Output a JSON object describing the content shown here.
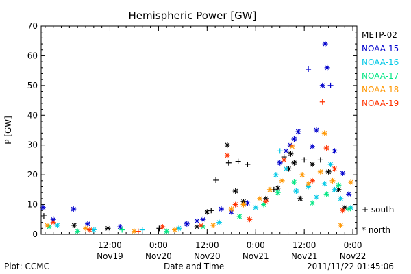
{
  "chart_data": {
    "type": "scatter",
    "title": "Hemispheric Power [GW]",
    "xlabel": "Date and Time",
    "ylabel": "P [GW]",
    "ylim": [
      0,
      70
    ],
    "y_ticks": [
      0,
      10,
      20,
      30,
      40,
      50,
      60,
      70
    ],
    "xlim": [
      "2011-11-18T19:00",
      "2011-11-22T01:00"
    ],
    "x_ticks": [
      {
        "time": "2011-11-19T12:00",
        "line1": "12:00",
        "line2": "Nov19"
      },
      {
        "time": "2011-11-20T00:00",
        "line1": "0:00",
        "line2": "Nov20"
      },
      {
        "time": "2011-11-20T12:00",
        "line1": "12:00",
        "line2": "Nov20"
      },
      {
        "time": "2011-11-21T00:00",
        "line1": "0:00",
        "line2": "Nov21"
      },
      {
        "time": "2011-11-21T12:00",
        "line1": "12:00",
        "line2": "Nov21"
      },
      {
        "time": "2011-11-22T00:00",
        "line1": "0:00",
        "line2": "Nov22"
      }
    ],
    "grid": false,
    "legend_position": "right",
    "markers": {
      "south": "+",
      "north": "*"
    },
    "marker_legend": [
      {
        "symbol": "+",
        "label": "south"
      },
      {
        "symbol": "*",
        "label": "north"
      }
    ],
    "series": [
      {
        "name": "METP-02",
        "color": "#000000",
        "points": [
          [
            "2011-11-18T19:40",
            6.2,
            "south"
          ],
          [
            "2011-11-19T03:10",
            3.0,
            "north"
          ],
          [
            "2011-11-19T11:30",
            2.0,
            "north"
          ],
          [
            "2011-11-20T00:10",
            2.0,
            "south"
          ],
          [
            "2011-11-20T09:30",
            2.5,
            "north"
          ],
          [
            "2011-11-20T12:00",
            7.5,
            "north"
          ],
          [
            "2011-11-20T13:00",
            8.0,
            "south"
          ],
          [
            "2011-11-20T14:10",
            18.2,
            "south"
          ],
          [
            "2011-11-20T17:00",
            30.0,
            "north"
          ],
          [
            "2011-11-20T17:20",
            24.0,
            "south"
          ],
          [
            "2011-11-20T19:00",
            14.5,
            "north"
          ],
          [
            "2011-11-20T19:40",
            24.5,
            "south"
          ],
          [
            "2011-11-20T21:00",
            11.0,
            "north"
          ],
          [
            "2011-11-20T22:00",
            23.5,
            "south"
          ],
          [
            "2011-11-21T02:30",
            12.0,
            "north"
          ],
          [
            "2011-11-21T04:30",
            15.0,
            "south"
          ],
          [
            "2011-11-21T05:30",
            15.5,
            "north"
          ],
          [
            "2011-11-21T07:00",
            26.0,
            "south"
          ],
          [
            "2011-11-21T08:10",
            22.0,
            "north"
          ],
          [
            "2011-11-21T08:40",
            27.0,
            "north"
          ],
          [
            "2011-11-21T09:30",
            24.0,
            "north"
          ],
          [
            "2011-11-21T11:00",
            12.0,
            "north"
          ],
          [
            "2011-11-21T12:00",
            25.0,
            "south"
          ],
          [
            "2011-11-21T14:00",
            23.5,
            "north"
          ],
          [
            "2011-11-21T16:00",
            25.0,
            "south"
          ],
          [
            "2011-11-21T18:00",
            21.0,
            "north"
          ],
          [
            "2011-11-21T20:30",
            15.0,
            "north"
          ],
          [
            "2011-11-21T22:00",
            9.0,
            "north"
          ]
        ]
      },
      {
        "name": "NOAA-15",
        "color": "#0000cc",
        "points": [
          [
            "2011-11-18T19:30",
            9.0,
            "north"
          ],
          [
            "2011-11-18T22:00",
            5.0,
            "north"
          ],
          [
            "2011-11-19T03:00",
            8.5,
            "north"
          ],
          [
            "2011-11-19T06:30",
            3.5,
            "north"
          ],
          [
            "2011-11-19T14:30",
            2.5,
            "north"
          ],
          [
            "2011-11-20T07:00",
            3.5,
            "north"
          ],
          [
            "2011-11-20T09:30",
            4.5,
            "north"
          ],
          [
            "2011-11-20T11:00",
            5.0,
            "north"
          ],
          [
            "2011-11-20T15:30",
            8.5,
            "north"
          ],
          [
            "2011-11-20T18:00",
            7.5,
            "north"
          ],
          [
            "2011-11-20T22:00",
            10.5,
            "north"
          ],
          [
            "2011-11-21T06:00",
            24.0,
            "north"
          ],
          [
            "2011-11-21T07:30",
            28.0,
            "north"
          ],
          [
            "2011-11-21T08:30",
            30.0,
            "north"
          ],
          [
            "2011-11-21T09:30",
            32.0,
            "north"
          ],
          [
            "2011-11-21T10:30",
            34.5,
            "north"
          ],
          [
            "2011-11-21T13:00",
            55.5,
            "south"
          ],
          [
            "2011-11-21T14:00",
            29.5,
            "north"
          ],
          [
            "2011-11-21T15:00",
            35.0,
            "north"
          ],
          [
            "2011-11-21T16:30",
            50.0,
            "north"
          ],
          [
            "2011-11-21T17:10",
            64.0,
            "north"
          ],
          [
            "2011-11-21T17:40",
            56.0,
            "north"
          ],
          [
            "2011-11-21T18:30",
            50.0,
            "south"
          ],
          [
            "2011-11-21T19:30",
            28.0,
            "north"
          ],
          [
            "2011-11-21T21:30",
            20.5,
            "north"
          ],
          [
            "2011-11-21T23:00",
            13.5,
            "north"
          ]
        ]
      },
      {
        "name": "NOAA-16",
        "color": "#00c8e6",
        "points": [
          [
            "2011-11-18T23:00",
            3.0,
            "north"
          ],
          [
            "2011-11-19T08:00",
            1.5,
            "north"
          ],
          [
            "2011-11-19T20:00",
            1.5,
            "south"
          ],
          [
            "2011-11-20T05:00",
            2.0,
            "north"
          ],
          [
            "2011-11-20T15:00",
            4.0,
            "north"
          ],
          [
            "2011-11-21T00:00",
            9.0,
            "north"
          ],
          [
            "2011-11-21T05:00",
            20.0,
            "north"
          ],
          [
            "2011-11-21T06:00",
            28.0,
            "south"
          ],
          [
            "2011-11-21T07:30",
            22.0,
            "north"
          ],
          [
            "2011-11-21T10:00",
            14.5,
            "north"
          ],
          [
            "2011-11-21T13:00",
            16.0,
            "north"
          ],
          [
            "2011-11-21T15:00",
            12.5,
            "north"
          ],
          [
            "2011-11-21T17:00",
            17.0,
            "north"
          ],
          [
            "2011-11-21T18:30",
            23.5,
            "north"
          ],
          [
            "2011-11-21T19:30",
            15.0,
            "north"
          ],
          [
            "2011-11-21T21:00",
            12.0,
            "north"
          ],
          [
            "2011-11-21T23:30",
            9.0,
            "north"
          ]
        ]
      },
      {
        "name": "NOAA-17",
        "color": "#00e682",
        "points": [
          [
            "2011-11-18T21:00",
            2.5,
            "north"
          ],
          [
            "2011-11-19T04:00",
            1.0,
            "north"
          ],
          [
            "2011-11-19T15:00",
            1.5,
            "south"
          ],
          [
            "2011-11-20T02:00",
            1.0,
            "north"
          ],
          [
            "2011-11-20T11:00",
            2.5,
            "north"
          ],
          [
            "2011-11-20T20:00",
            6.0,
            "north"
          ],
          [
            "2011-11-21T02:00",
            10.0,
            "north"
          ],
          [
            "2011-11-21T05:30",
            14.0,
            "north"
          ],
          [
            "2011-11-21T09:30",
            17.5,
            "north"
          ],
          [
            "2011-11-21T14:00",
            10.5,
            "north"
          ],
          [
            "2011-11-21T17:30",
            13.5,
            "north"
          ],
          [
            "2011-11-21T20:30",
            16.5,
            "north"
          ],
          [
            "2011-11-21T23:00",
            8.5,
            "north"
          ]
        ]
      },
      {
        "name": "NOAA-18",
        "color": "#ff9600",
        "points": [
          [
            "2011-11-18T20:30",
            3.0,
            "north"
          ],
          [
            "2011-11-19T06:00",
            2.0,
            "north"
          ],
          [
            "2011-11-19T18:00",
            1.0,
            "north"
          ],
          [
            "2011-11-20T04:00",
            1.5,
            "north"
          ],
          [
            "2011-11-20T13:30",
            3.0,
            "north"
          ],
          [
            "2011-11-20T18:00",
            8.5,
            "north"
          ],
          [
            "2011-11-20T21:00",
            10.0,
            "north"
          ],
          [
            "2011-11-21T01:00",
            12.0,
            "north"
          ],
          [
            "2011-11-21T03:30",
            15.0,
            "north"
          ],
          [
            "2011-11-21T06:30",
            18.0,
            "north"
          ],
          [
            "2011-11-21T09:00",
            29.5,
            "north"
          ],
          [
            "2011-11-21T11:30",
            20.0,
            "north"
          ],
          [
            "2011-11-21T13:00",
            17.0,
            "north"
          ],
          [
            "2011-11-21T16:00",
            21.0,
            "north"
          ],
          [
            "2011-11-21T17:00",
            34.0,
            "north"
          ],
          [
            "2011-11-21T19:00",
            18.0,
            "north"
          ],
          [
            "2011-11-21T21:00",
            3.0,
            "north"
          ],
          [
            "2011-11-21T23:30",
            17.5,
            "north"
          ]
        ]
      },
      {
        "name": "NOAA-19",
        "color": "#ff3200",
        "points": [
          [
            "2011-11-18T22:00",
            4.0,
            "north"
          ],
          [
            "2011-11-19T07:00",
            1.5,
            "north"
          ],
          [
            "2011-11-19T19:00",
            1.0,
            "south"
          ],
          [
            "2011-11-20T01:00",
            2.5,
            "north"
          ],
          [
            "2011-11-20T10:30",
            3.0,
            "north"
          ],
          [
            "2011-11-20T17:00",
            26.5,
            "north"
          ],
          [
            "2011-11-20T19:00",
            10.0,
            "north"
          ],
          [
            "2011-11-20T22:30",
            5.0,
            "north"
          ],
          [
            "2011-11-21T02:30",
            11.0,
            "north"
          ],
          [
            "2011-11-21T07:00",
            25.0,
            "north"
          ],
          [
            "2011-11-21T09:00",
            30.0,
            "south"
          ],
          [
            "2011-11-21T14:00",
            18.0,
            "north"
          ],
          [
            "2011-11-21T16:30",
            44.5,
            "south"
          ],
          [
            "2011-11-21T17:30",
            29.0,
            "north"
          ],
          [
            "2011-11-21T19:30",
            22.0,
            "north"
          ],
          [
            "2011-11-21T21:30",
            8.0,
            "north"
          ]
        ]
      }
    ]
  },
  "footer": {
    "plot_source": "Plot: CCMC",
    "timestamp": "2011/11/22 01:45:06"
  }
}
